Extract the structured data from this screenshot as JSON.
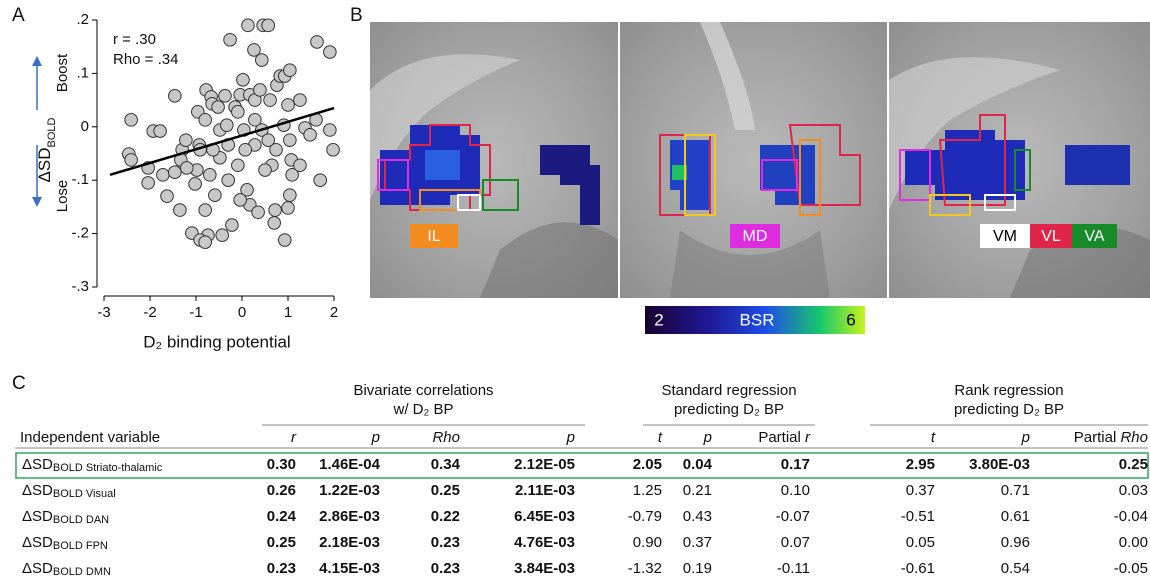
{
  "panel_labels": [
    "A",
    "B",
    "C"
  ],
  "chart_data": {
    "type": "scatter",
    "x_label": "D₂ binding potential",
    "y_label": {
      "main": "ΔSD",
      "sub": "BOLD"
    },
    "direction_labels": [
      "Boost",
      "Lose"
    ],
    "annotations": [
      "r = .30",
      "Rho = .34"
    ],
    "color": "#c8c8c8",
    "xlim": [
      -3,
      2
    ],
    "xticks": [
      -3,
      -2,
      -1,
      0,
      1,
      2
    ],
    "ylim": [
      -0.3,
      0.2
    ],
    "yticks": [
      {
        "value": -0.3,
        "label": "-.3"
      },
      {
        "value": -0.2,
        "label": "-.2"
      },
      {
        "value": -0.1,
        "label": "-.1"
      },
      0,
      {
        "value": 0.1,
        "label": ".1"
      },
      {
        "value": 0.2,
        "label": ".2"
      }
    ],
    "x": [
      0.13,
      0.46,
      0.57,
      -0.26,
      0.26,
      1.63,
      1.91,
      -2.41,
      -2.46,
      -2.41,
      -1.93,
      -1.78,
      -2.04,
      -2.04,
      -1.46,
      -1.63,
      -1.72,
      -1.46,
      -1.3,
      -1.33,
      -1.02,
      -0.98,
      -0.93,
      -0.96,
      -0.78,
      -0.67,
      -0.65,
      -0.8,
      -0.52,
      -0.48,
      -0.37,
      -0.33,
      -0.15,
      -0.09,
      -0.04,
      0.02,
      0.04,
      0.17,
      0.28,
      0.39,
      0.43,
      0.61,
      0.76,
      0.83,
      0.93,
      1.0,
      0.91,
      1.04,
      1.07,
      1.09,
      1.04,
      1.0,
      0.74,
      0.65,
      0.5,
      0.28,
      0.07,
      -0.09,
      -0.3,
      -0.48,
      -0.63,
      -0.7,
      -0.59,
      -0.8,
      -0.74,
      -0.43,
      -1.09,
      -0.91,
      -0.8,
      -0.22,
      0.17,
      0.35,
      0.72,
      0.93,
      0.7,
      1.26,
      1.37,
      1.48,
      1.61,
      1.7,
      1.91,
      1.98,
      0.43,
      1.04,
      0.11,
      -0.04,
      -0.91,
      -1.2,
      -1.35,
      -1.22,
      0.57,
      1.26,
      -0.3,
      0.28
    ],
    "values": [
      0.19,
      0.19,
      0.19,
      0.163,
      0.144,
      0.159,
      0.14,
      0.013,
      -0.051,
      -0.062,
      -0.008,
      -0.008,
      -0.077,
      -0.105,
      0.058,
      -0.13,
      -0.09,
      -0.085,
      -0.043,
      -0.062,
      -0.107,
      -0.081,
      -0.034,
      0.028,
      0.069,
      0.056,
      0.043,
      0.013,
      0.037,
      -0.006,
      0.058,
      0.003,
      0.037,
      0.028,
      0.06,
      0.088,
      -0.006,
      0.06,
      0.05,
      0.069,
      -0.006,
      0.05,
      0.078,
      0.095,
      0.095,
      0.041,
      0.003,
      -0.025,
      -0.062,
      -0.09,
      -0.128,
      -0.152,
      -0.043,
      -0.072,
      -0.081,
      -0.034,
      -0.043,
      -0.072,
      -0.1,
      -0.058,
      -0.043,
      -0.09,
      -0.128,
      -0.156,
      -0.203,
      -0.203,
      -0.199,
      -0.212,
      -0.216,
      -0.184,
      -0.146,
      -0.16,
      -0.156,
      -0.212,
      -0.18,
      -0.072,
      -0.002,
      -0.015,
      0.013,
      -0.1,
      -0.006,
      -0.043,
      0.125,
      0.106,
      -0.118,
      -0.137,
      -0.043,
      -0.077,
      -0.156,
      -0.025,
      -0.025,
      0.05,
      -0.034,
      0.013
    ],
    "trend_line": {
      "x": [
        -2.87,
        2
      ],
      "y": [
        -0.09,
        0.035
      ]
    }
  },
  "brain": {
    "labels": [
      {
        "text": "IL",
        "color": "#f28c1e"
      },
      {
        "text": "MD",
        "color": "#e02ce0"
      },
      {
        "text": "VM",
        "color": "#ffffff"
      },
      {
        "text": "VL",
        "color": "#e0254a"
      },
      {
        "text": "VA",
        "color": "#178a2a"
      }
    ],
    "colorbar": {
      "min": "2",
      "label": "BSR",
      "max": "6"
    }
  },
  "table": {
    "groups": [
      [
        "Bivariate correlations",
        "w/ D₂ BP"
      ],
      [
        "Standard regression",
        "predicting D₂ BP"
      ],
      [
        "Rank regression",
        "predicting D₂ BP"
      ]
    ],
    "headers": [
      "Independent variable",
      "r",
      "p",
      "Rho",
      "p",
      "t",
      "p",
      "Partial r",
      "t",
      "p",
      "Partial Rho"
    ],
    "rows": [
      {
        "variable": {
          "main": "ΔSD",
          "sub": "BOLD Striato-thalamic"
        },
        "highlight": true,
        "cells": [
          "0.30",
          "1.46E-04",
          "0.34",
          "2.12E-05",
          "2.05",
          "0.04",
          "0.17",
          "2.95",
          "3.80E-03",
          "0.25"
        ]
      },
      {
        "variable": {
          "main": "ΔSD",
          "sub": "BOLD Visual"
        },
        "cells": [
          "0.26",
          "1.22E-03",
          "0.25",
          "2.11E-03",
          "1.25",
          "0.21",
          "0.10",
          "0.37",
          "0.71",
          "0.03"
        ]
      },
      {
        "variable": {
          "main": "ΔSD",
          "sub": "BOLD DAN"
        },
        "cells": [
          "0.24",
          "2.86E-03",
          "0.22",
          "6.45E-03",
          "-0.79",
          "0.43",
          "-0.07",
          "-0.51",
          "0.61",
          "-0.04"
        ]
      },
      {
        "variable": {
          "main": "ΔSD",
          "sub": "BOLD FPN"
        },
        "cells": [
          "0.25",
          "2.18E-03",
          "0.23",
          "4.76E-03",
          "0.90",
          "0.37",
          "0.07",
          "0.05",
          "0.96",
          "0.00"
        ]
      },
      {
        "variable": {
          "main": "ΔSD",
          "sub": "BOLD DMN"
        },
        "cells": [
          "0.23",
          "4.15E-03",
          "0.23",
          "3.84E-03",
          "-1.32",
          "0.19",
          "-0.11",
          "-0.61",
          "0.54",
          "-0.05"
        ]
      }
    ]
  }
}
